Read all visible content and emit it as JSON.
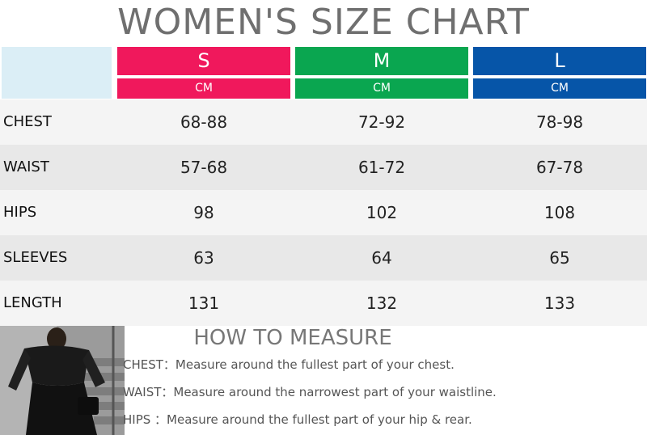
{
  "title": "WOMEN'S SIZE CHART",
  "sizes": [
    {
      "label": "S",
      "unit": "CM",
      "color": "#f0185c"
    },
    {
      "label": "M",
      "unit": "CM",
      "color": "#0aa650"
    },
    {
      "label": "L",
      "unit": "CM",
      "color": "#0655a8"
    }
  ],
  "rows": [
    {
      "label": "CHEST",
      "values": [
        "68-88",
        "72-92",
        "78-98"
      ]
    },
    {
      "label": "WAIST",
      "values": [
        "57-68",
        "61-72",
        "67-78"
      ]
    },
    {
      "label": "HIPS",
      "values": [
        "98",
        "102",
        "108"
      ]
    },
    {
      "label": "SLEEVES",
      "values": [
        "63",
        "64",
        "65"
      ]
    },
    {
      "label": "LENGTH",
      "values": [
        "131",
        "132",
        "133"
      ]
    }
  ],
  "how_to_measure": {
    "title": "HOW TO MEASURE",
    "items": [
      "CHEST：Measure around the fullest part of your chest.",
      "WAIST：Measure around the narrowest part of your waistline.",
      "HIPS  ：Measure around the fullest part of your hip & rear."
    ]
  }
}
